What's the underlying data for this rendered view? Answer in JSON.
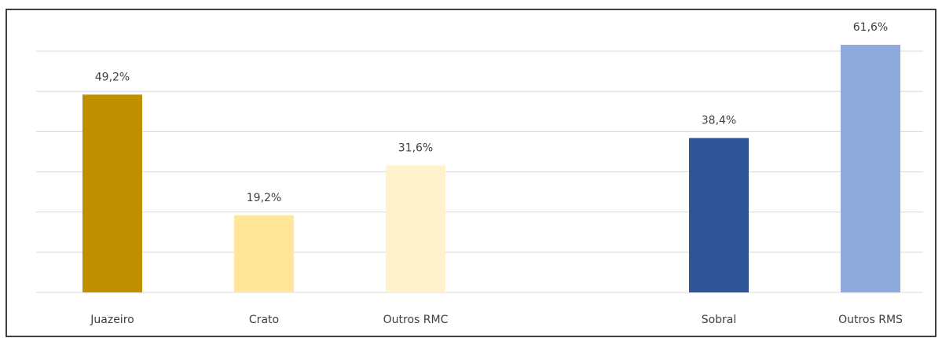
{
  "chart_data": {
    "type": "bar",
    "categories": [
      "Juazeiro",
      "Crato",
      "Outros RMC",
      null,
      "Sobral",
      "Outros RMS"
    ],
    "values": [
      49.2,
      19.2,
      31.6,
      null,
      38.4,
      61.6
    ],
    "value_labels": [
      "49,2%",
      "19,2%",
      "31,6%",
      null,
      "38,4%",
      "61,6%"
    ],
    "colors": [
      "#bf8f00",
      "#ffe699",
      "#fff2cc",
      null,
      "#2f5597",
      "#8faadc"
    ],
    "ylim": [
      0,
      70
    ],
    "yticks": [
      0,
      10,
      20,
      30,
      40,
      50,
      60
    ],
    "grid": true
  }
}
